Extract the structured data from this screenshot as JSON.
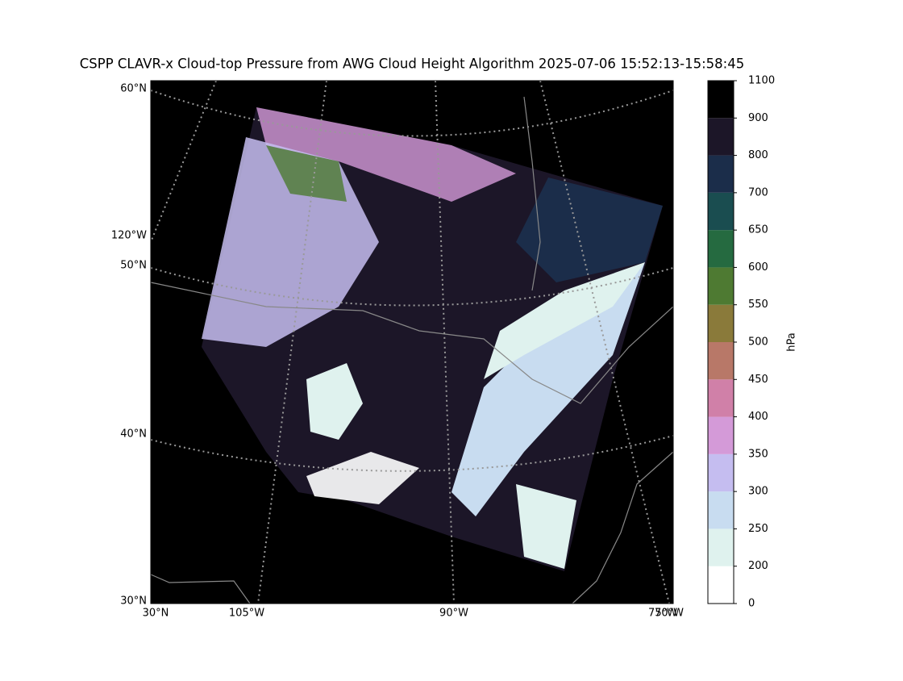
{
  "title": "CSPP CLAVR-x Cloud-top Pressure from AWG Cloud Height Algorithm 2025-07-06 15:52:13-15:58:45",
  "map": {
    "lat_labels": [
      "60°N",
      "50°N",
      "40°N",
      "30°N"
    ],
    "left_lon_label": "120°W",
    "bottom_labels": [
      "30°N",
      "105°W",
      "90°W",
      "75°W",
      "70°W"
    ]
  },
  "colorbar": {
    "label": "hPa",
    "ticks": [
      0,
      200,
      250,
      300,
      350,
      400,
      450,
      500,
      550,
      600,
      650,
      700,
      800,
      900,
      1100
    ],
    "colors": [
      "#ffffff",
      "#dff2ee",
      "#c8dcf0",
      "#c5bdf0",
      "#d49ad8",
      "#d080a8",
      "#b87868",
      "#8a7a3a",
      "#4e7a32",
      "#256a40",
      "#1a4d50",
      "#1b2d4a",
      "#1c1628",
      "#000000"
    ]
  }
}
